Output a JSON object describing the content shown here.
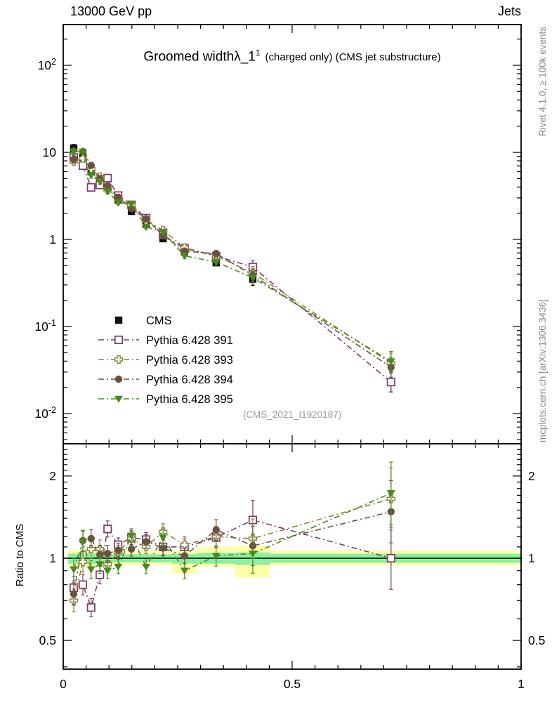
{
  "header": {
    "left": "13000 GeV pp",
    "right": "Jets"
  },
  "watermarks": {
    "top": "Rivet 4.1.0, ≥ 100k events",
    "bottom": "mcplots.cern.ch [arXiv:1306.3436]"
  },
  "plot": {
    "title_main": "Groomed width",
    "title_symbol": "λ_1",
    "title_sup": "1",
    "title_paren": "(charged only) (CMS jet substructure)",
    "ref": "(CMS_2021_I1920187)",
    "ratio_ylabel": "Ratio to CMS"
  },
  "axes": {
    "x": {
      "range": [
        0,
        1
      ],
      "majors": [
        0,
        0.5,
        1
      ],
      "major_labels": [
        "0",
        "0.5",
        "1"
      ],
      "minor_step": 0.05
    },
    "y_main": {
      "scale": "log",
      "range": [
        0.0047,
        295
      ],
      "decades": [
        2,
        1,
        0,
        -1,
        -2
      ],
      "labels": [
        "10^2",
        "10",
        "1",
        "10^-1",
        "10^-2"
      ]
    },
    "y_ratio": {
      "scale": "log",
      "range": [
        0.39,
        2.56
      ],
      "majors": [
        2,
        1,
        0.5
      ],
      "labels": [
        "2",
        "1",
        "0.5"
      ]
    }
  },
  "chart_data": {
    "type": "scatter",
    "title": "Groomed width λ_1^1 (charged only) (CMS jet substructure)",
    "x": [
      0.023,
      0.043,
      0.061,
      0.08,
      0.097,
      0.12,
      0.149,
      0.181,
      0.218,
      0.265,
      0.334,
      0.414,
      0.716
    ],
    "err_factor": [
      1.1,
      1.09,
      1.08,
      1.08,
      1.07,
      1.06,
      1.06,
      1.06,
      1.07,
      1.07,
      1.09,
      1.18,
      1.3
    ],
    "cms": {
      "label": "CMS",
      "color": "#111111",
      "marker": "square-filled",
      "values": [
        11.2,
        8.8,
        6.0,
        4.85,
        3.95,
        2.85,
        2.1,
        1.5,
        1.02,
        0.72,
        0.54,
        0.35,
        0.023
      ]
    },
    "series": [
      {
        "id": "391",
        "label": "Pythia 6.428 391",
        "color": "#7d3b60",
        "marker": "square-open",
        "ratio": [
          0.78,
          0.8,
          0.66,
          0.87,
          1.28,
          1.12,
          1.19,
          1.17,
          1.1,
          1.1,
          1.19,
          1.38,
          1.0
        ]
      },
      {
        "id": "393",
        "label": "Pythia 6.428 393",
        "color": "#8d8440",
        "marker": "cross-open",
        "ratio": [
          0.7,
          0.97,
          1.08,
          1.08,
          0.95,
          1.05,
          1.18,
          1.1,
          1.25,
          1.12,
          1.2,
          1.18,
          1.65
        ]
      },
      {
        "id": "394",
        "label": "Pythia 6.428 394",
        "color": "#6b5240",
        "marker": "circle-filled",
        "ratio": [
          0.74,
          1.16,
          1.18,
          1.03,
          1.04,
          1.07,
          1.08,
          1.15,
          1.09,
          1.02,
          1.27,
          1.11,
          1.48
        ]
      },
      {
        "id": "395",
        "label": "Pythia 6.428 395",
        "color": "#4a8a1d",
        "marker": "triangle-down",
        "ratio": [
          0.91,
          1.15,
          0.91,
          0.95,
          0.9,
          0.93,
          1.21,
          0.93,
          1.19,
          0.9,
          1.02,
          1.04,
          1.73
        ]
      }
    ],
    "bands": [
      {
        "x0": 0.011,
        "x1": 0.089,
        "yellow": [
          0.93,
          1.07
        ],
        "green": [
          0.955,
          1.04
        ]
      },
      {
        "x0": 0.089,
        "x1": 0.238,
        "yellow": [
          0.945,
          1.06
        ],
        "green": [
          0.965,
          1.035
        ]
      },
      {
        "x0": 0.238,
        "x1": 0.292,
        "yellow": [
          0.88,
          1.06
        ],
        "green": [
          0.955,
          1.035
        ]
      },
      {
        "x0": 0.292,
        "x1": 0.376,
        "yellow": [
          0.93,
          1.1
        ],
        "green": [
          0.955,
          1.045
        ]
      },
      {
        "x0": 0.376,
        "x1": 0.452,
        "yellow": [
          0.85,
          1.11
        ],
        "green": [
          0.945,
          1.05
        ]
      },
      {
        "x0": 0.452,
        "x1": 1.0,
        "yellow": [
          0.94,
          1.065
        ],
        "green": [
          0.962,
          1.038
        ]
      }
    ],
    "band_colors": {
      "yellow": "#ffffaa",
      "green": "#8cf0a0"
    },
    "layout": {
      "legend_position": "inside-left-middle",
      "grid": false
    }
  }
}
